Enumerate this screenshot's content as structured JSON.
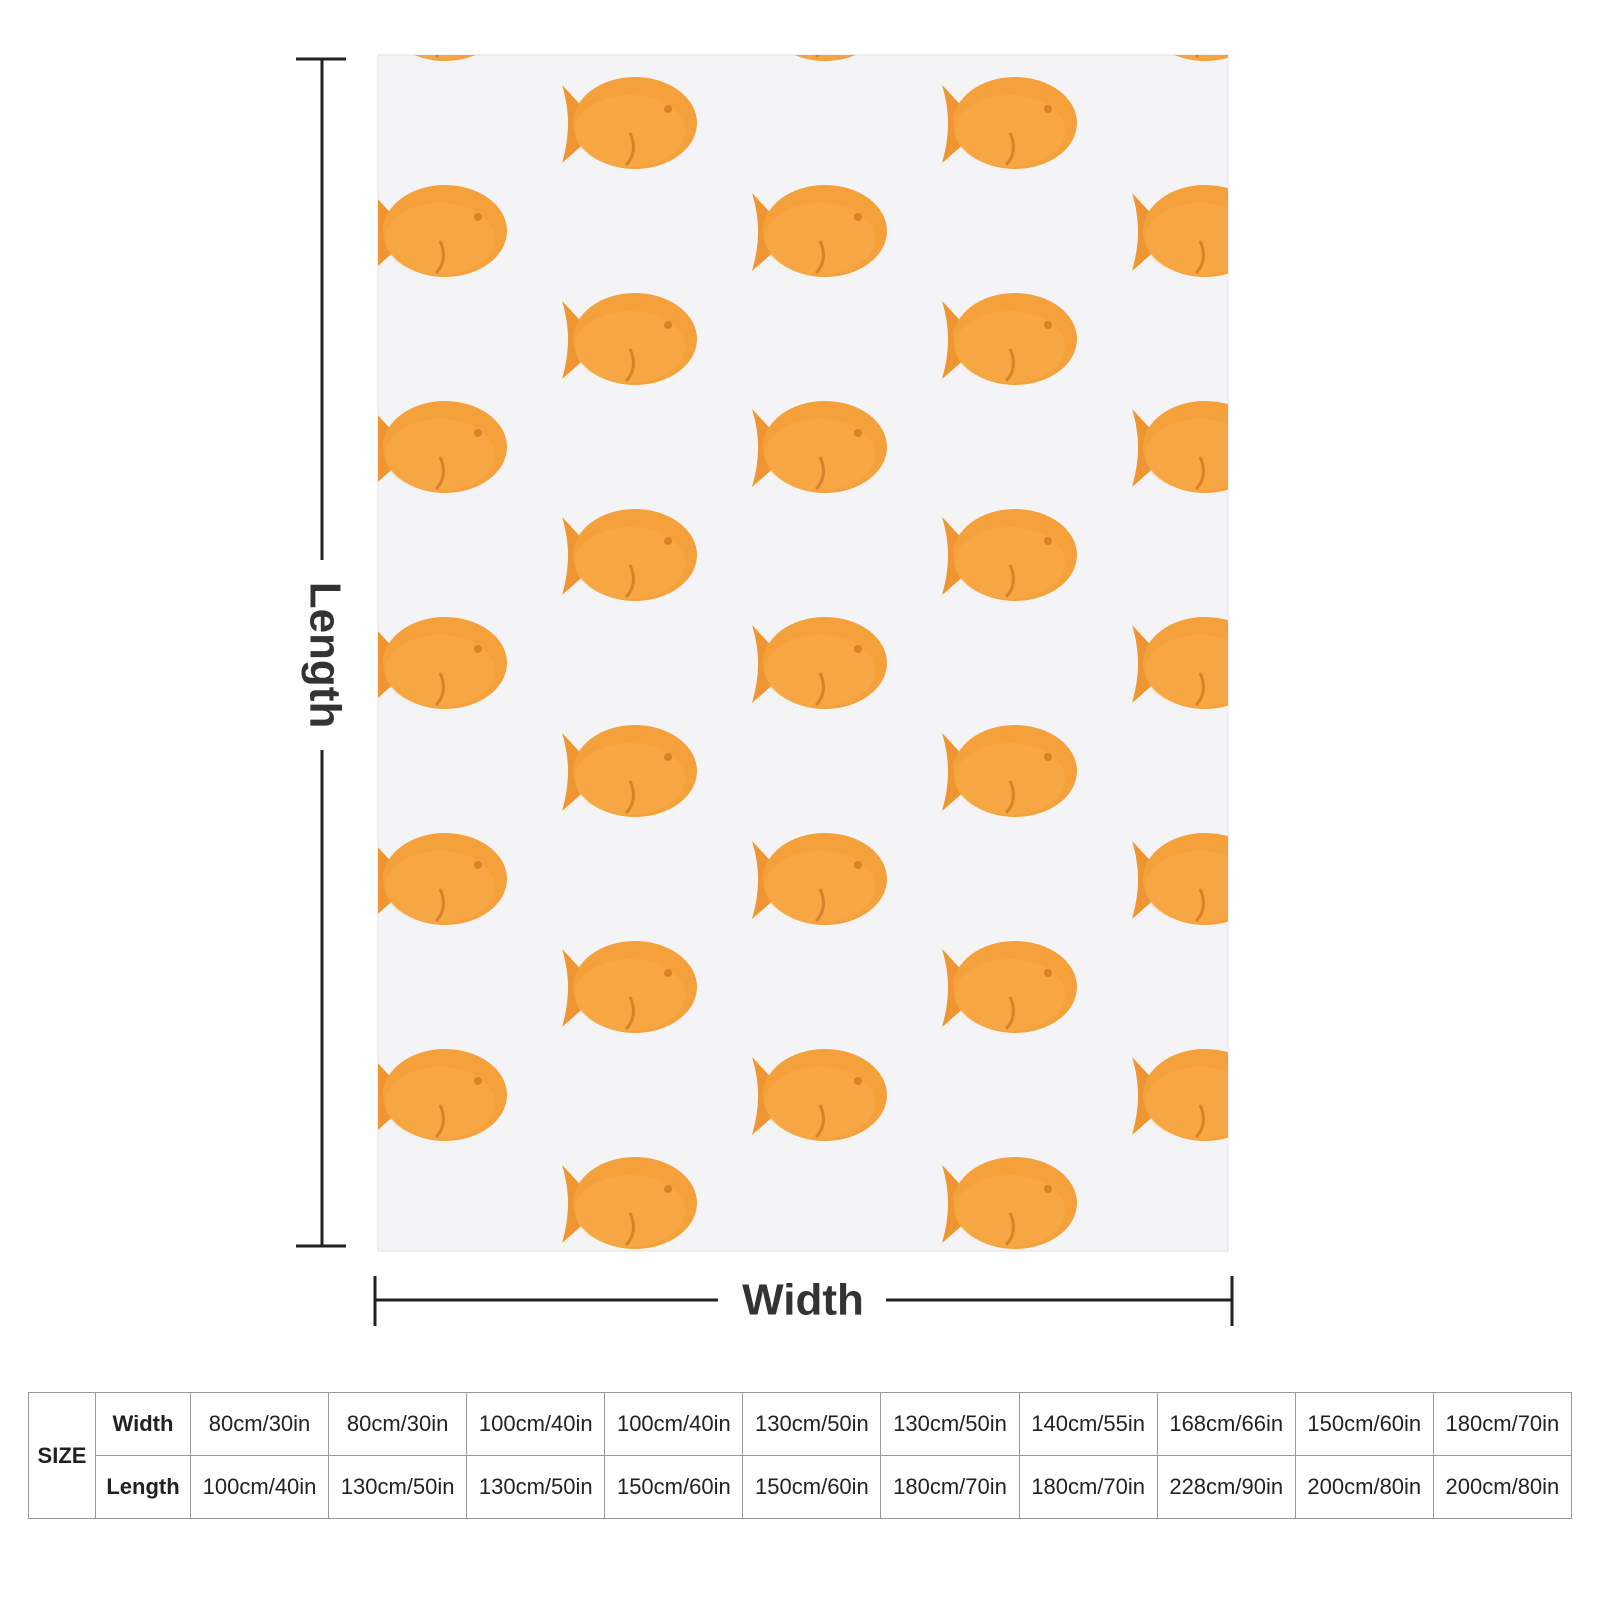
{
  "length_label": "Length",
  "width_label": "Width",
  "table": {
    "size_label": "SIZE",
    "rows": [
      {
        "label": "Width",
        "values": [
          "80cm/30in",
          "80cm/30in",
          "100cm/40in",
          "100cm/40in",
          "130cm/50in",
          "130cm/50in",
          "140cm/55in",
          "168cm/66in",
          "150cm/60in",
          "180cm/70in"
        ]
      },
      {
        "label": "Length",
        "values": [
          "100cm/40in",
          "130cm/50in",
          "130cm/50in",
          "150cm/60in",
          "150cm/60in",
          "180cm/70in",
          "180cm/70in",
          "228cm/90in",
          "200cm/80in",
          "200cm/80in"
        ]
      }
    ]
  }
}
